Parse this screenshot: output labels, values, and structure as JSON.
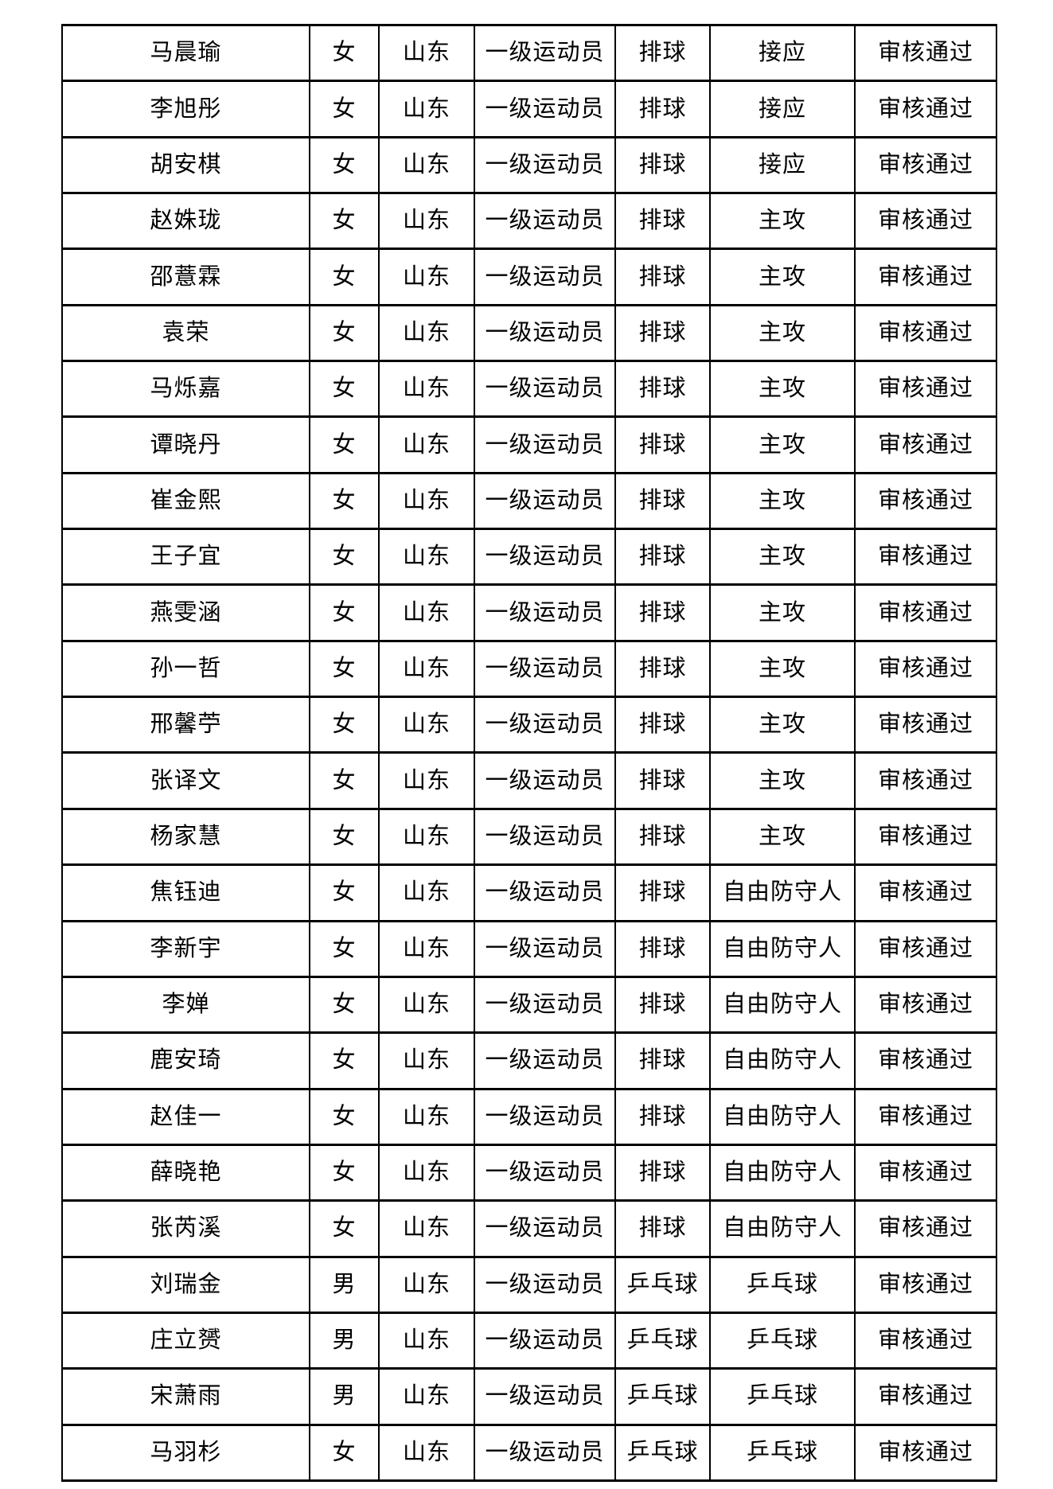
{
  "page": {
    "background_color": "#ffffff",
    "text_color": "#000000",
    "grid_color": "#000000"
  },
  "table": {
    "column_keys": [
      "name",
      "gender",
      "region",
      "grade",
      "sport",
      "position",
      "status"
    ],
    "rows": [
      {
        "name": "马晨瑜",
        "gender": "女",
        "region": "山东",
        "grade": "一级运动员",
        "sport": "排球",
        "position": "接应",
        "status": "审核通过"
      },
      {
        "name": "李旭彤",
        "gender": "女",
        "region": "山东",
        "grade": "一级运动员",
        "sport": "排球",
        "position": "接应",
        "status": "审核通过"
      },
      {
        "name": "胡安棋",
        "gender": "女",
        "region": "山东",
        "grade": "一级运动员",
        "sport": "排球",
        "position": "接应",
        "status": "审核通过"
      },
      {
        "name": "赵姝珑",
        "gender": "女",
        "region": "山东",
        "grade": "一级运动员",
        "sport": "排球",
        "position": "主攻",
        "status": "审核通过"
      },
      {
        "name": "邵薏霖",
        "gender": "女",
        "region": "山东",
        "grade": "一级运动员",
        "sport": "排球",
        "position": "主攻",
        "status": "审核通过"
      },
      {
        "name": "袁荣",
        "gender": "女",
        "region": "山东",
        "grade": "一级运动员",
        "sport": "排球",
        "position": "主攻",
        "status": "审核通过"
      },
      {
        "name": "马烁嘉",
        "gender": "女",
        "region": "山东",
        "grade": "一级运动员",
        "sport": "排球",
        "position": "主攻",
        "status": "审核通过"
      },
      {
        "name": "谭晓丹",
        "gender": "女",
        "region": "山东",
        "grade": "一级运动员",
        "sport": "排球",
        "position": "主攻",
        "status": "审核通过"
      },
      {
        "name": "崔金熙",
        "gender": "女",
        "region": "山东",
        "grade": "一级运动员",
        "sport": "排球",
        "position": "主攻",
        "status": "审核通过"
      },
      {
        "name": "王子宜",
        "gender": "女",
        "region": "山东",
        "grade": "一级运动员",
        "sport": "排球",
        "position": "主攻",
        "status": "审核通过"
      },
      {
        "name": "燕雯涵",
        "gender": "女",
        "region": "山东",
        "grade": "一级运动员",
        "sport": "排球",
        "position": "主攻",
        "status": "审核通过"
      },
      {
        "name": "孙一哲",
        "gender": "女",
        "region": "山东",
        "grade": "一级运动员",
        "sport": "排球",
        "position": "主攻",
        "status": "审核通过"
      },
      {
        "name": "邢馨苧",
        "gender": "女",
        "region": "山东",
        "grade": "一级运动员",
        "sport": "排球",
        "position": "主攻",
        "status": "审核通过"
      },
      {
        "name": "张译文",
        "gender": "女",
        "region": "山东",
        "grade": "一级运动员",
        "sport": "排球",
        "position": "主攻",
        "status": "审核通过"
      },
      {
        "name": "杨家慧",
        "gender": "女",
        "region": "山东",
        "grade": "一级运动员",
        "sport": "排球",
        "position": "主攻",
        "status": "审核通过"
      },
      {
        "name": "焦钰迪",
        "gender": "女",
        "region": "山东",
        "grade": "一级运动员",
        "sport": "排球",
        "position": "自由防守人",
        "status": "审核通过"
      },
      {
        "name": "李新宇",
        "gender": "女",
        "region": "山东",
        "grade": "一级运动员",
        "sport": "排球",
        "position": "自由防守人",
        "status": "审核通过"
      },
      {
        "name": "李婵",
        "gender": "女",
        "region": "山东",
        "grade": "一级运动员",
        "sport": "排球",
        "position": "自由防守人",
        "status": "审核通过"
      },
      {
        "name": "鹿安琦",
        "gender": "女",
        "region": "山东",
        "grade": "一级运动员",
        "sport": "排球",
        "position": "自由防守人",
        "status": "审核通过"
      },
      {
        "name": "赵佳一",
        "gender": "女",
        "region": "山东",
        "grade": "一级运动员",
        "sport": "排球",
        "position": "自由防守人",
        "status": "审核通过"
      },
      {
        "name": "薛晓艳",
        "gender": "女",
        "region": "山东",
        "grade": "一级运动员",
        "sport": "排球",
        "position": "自由防守人",
        "status": "审核通过"
      },
      {
        "name": "张芮溪",
        "gender": "女",
        "region": "山东",
        "grade": "一级运动员",
        "sport": "排球",
        "position": "自由防守人",
        "status": "审核通过"
      },
      {
        "name": "刘瑞金",
        "gender": "男",
        "region": "山东",
        "grade": "一级运动员",
        "sport": "乒乓球",
        "position": "乒乓球",
        "status": "审核通过"
      },
      {
        "name": "庄立赟",
        "gender": "男",
        "region": "山东",
        "grade": "一级运动员",
        "sport": "乒乓球",
        "position": "乒乓球",
        "status": "审核通过"
      },
      {
        "name": "宋萧雨",
        "gender": "男",
        "region": "山东",
        "grade": "一级运动员",
        "sport": "乒乓球",
        "position": "乒乓球",
        "status": "审核通过"
      },
      {
        "name": "马羽杉",
        "gender": "女",
        "region": "山东",
        "grade": "一级运动员",
        "sport": "乒乓球",
        "position": "乒乓球",
        "status": "审核通过"
      }
    ]
  }
}
